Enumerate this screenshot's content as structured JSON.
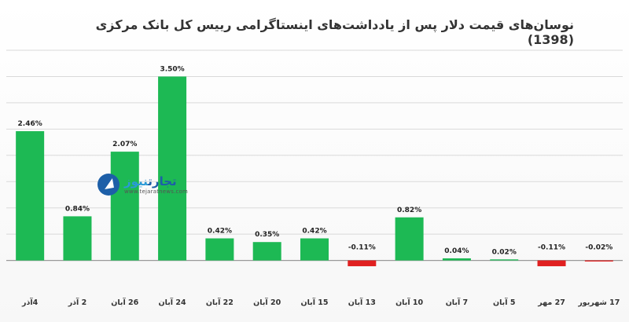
{
  "chart_data": {
    "type": "bar",
    "title": "نوسان‌های قیمت دلار پس از یادداشت‌های اینستاگرامی رییس کل بانک مرکزی (1398)",
    "categories": [
      "17 شهریور",
      "27 مهر",
      "5 آبان",
      "7 آبان",
      "10 آبان",
      "13 آبان",
      "15 آبان",
      "20 آبان",
      "22 آبان",
      "24 آبان",
      "26 آبان",
      "2 آذر",
      "4آذر"
    ],
    "values": [
      -0.02,
      -0.11,
      0.02,
      0.04,
      0.82,
      -0.11,
      0.42,
      0.35,
      0.42,
      3.5,
      2.07,
      0.84,
      2.46
    ],
    "data_labels": [
      "-0.02%",
      "-0.11%",
      "0.02%",
      "0.04%",
      "0.82%",
      "-0.11%",
      "0.42%",
      "0.35%",
      "0.42%",
      "3.50%",
      "2.07%",
      "0.84%",
      "2.46%"
    ],
    "ylim": [
      -0.2,
      4.0
    ],
    "grid": true,
    "colors": {
      "positive": "#1db954",
      "negative": "#e02020",
      "grid": "#d9d9d9",
      "axis": "#999999"
    }
  },
  "logo": {
    "word1": "تجارت",
    "word2": "نیوز",
    "site": "www.tejaratnews.com"
  }
}
